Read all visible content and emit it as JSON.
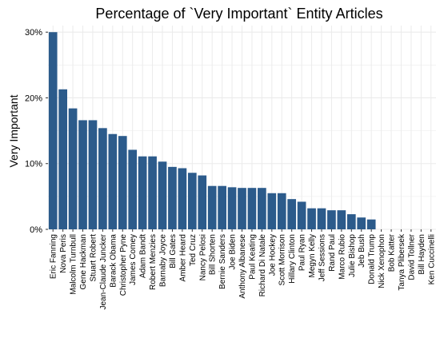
{
  "chart_data": {
    "type": "bar",
    "title": "Percentage of `Very Important` Entity Articles",
    "xlabel": "",
    "ylabel": "Very Important",
    "ylim": [
      0,
      31
    ],
    "yticks": [
      0,
      10,
      20,
      30
    ],
    "ytick_labels": [
      "0%",
      "10%",
      "20%",
      "30%"
    ],
    "grid": true,
    "bar_color": "#2c5b8b",
    "grid_color": "#ebebeb",
    "categories": [
      "Eric Fanning",
      "Nova Peris",
      "Malcolm Turnbull",
      "Gene Hackman",
      "Stuart Robert",
      "Jean-Claude Juncker",
      "Barack Obama",
      "Christopher Pyne",
      "James Comey",
      "Adam Bandt",
      "Robert Menzies",
      "Barnaby Joyce",
      "Bill Gates",
      "Amber Heard",
      "Ted Cruz",
      "Nancy Pelosi",
      "Bill Shorten",
      "Bernie Sanders",
      "Joe Biden",
      "Anthony Albanese",
      "Paul Keating",
      "Richard Di Natale",
      "Joe Hockey",
      "Scott Morrison",
      "Hillary Clinton",
      "Paul Ryan",
      "Megyn Kelly",
      "Jeff Sessions",
      "Rand Paul",
      "Marco Rubio",
      "Julie Bishop",
      "Jeb Bush",
      "Donald Trump",
      "Nick Xenophon",
      "Bob Katter",
      "Tanya Plibersek",
      "David Tollner",
      "Bill Hayden",
      "Ken Cuccinelli"
    ],
    "values": [
      30.0,
      21.3,
      18.4,
      16.6,
      16.6,
      15.4,
      14.5,
      14.2,
      12.1,
      11.1,
      11.1,
      10.3,
      9.5,
      9.3,
      8.6,
      8.2,
      6.6,
      6.6,
      6.4,
      6.3,
      6.3,
      6.3,
      5.5,
      5.5,
      4.6,
      4.2,
      3.2,
      3.2,
      2.9,
      2.9,
      2.3,
      1.8,
      1.5,
      0,
      0,
      0,
      0,
      0,
      0
    ]
  }
}
